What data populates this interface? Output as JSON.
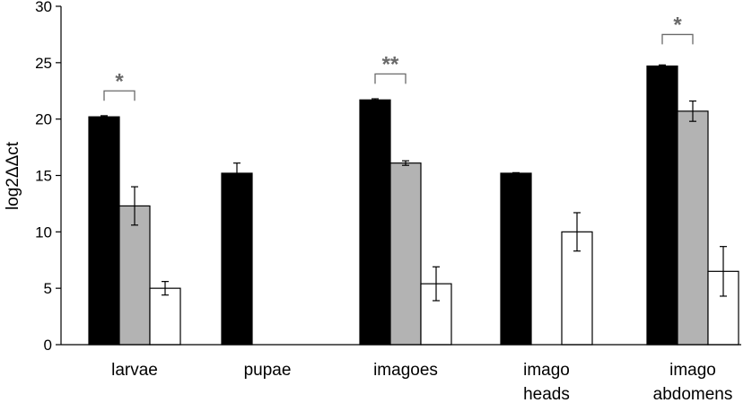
{
  "chart_data": {
    "type": "bar",
    "ylabel": "log2ΔΔct",
    "ylim": [
      0,
      30
    ],
    "yticks": [
      0,
      5,
      10,
      15,
      20,
      25,
      30
    ],
    "grid": false,
    "legend": "none",
    "categories": [
      {
        "lines": [
          "larvae"
        ]
      },
      {
        "lines": [
          "pupae"
        ]
      },
      {
        "lines": [
          "imagoes"
        ]
      },
      {
        "lines": [
          "imago",
          "heads"
        ]
      },
      {
        "lines": [
          "imago",
          "abdomens"
        ]
      }
    ],
    "series": [
      {
        "color": "#000000",
        "values": [
          20.2,
          15.2,
          21.7,
          15.2,
          24.7
        ],
        "errors": [
          0.1,
          0.9,
          0.1,
          0.05,
          0.1
        ]
      },
      {
        "color": "#b3b3b3",
        "values": [
          12.3,
          null,
          16.1,
          null,
          20.7
        ],
        "errors": [
          1.7,
          null,
          0.2,
          null,
          0.9
        ]
      },
      {
        "color": "#ffffff",
        "values": [
          5.0,
          null,
          5.4,
          10.0,
          6.5
        ],
        "errors": [
          0.6,
          null,
          1.5,
          1.7,
          2.2
        ]
      }
    ],
    "annotations": [
      {
        "category": 0,
        "from_series": 0,
        "to_series": 1,
        "text": "*",
        "y": 22.5
      },
      {
        "category": 2,
        "from_series": 0,
        "to_series": 1,
        "text": "**",
        "y": 24
      },
      {
        "category": 4,
        "from_series": 0,
        "to_series": 1,
        "text": "*",
        "y": 27.5
      }
    ]
  }
}
